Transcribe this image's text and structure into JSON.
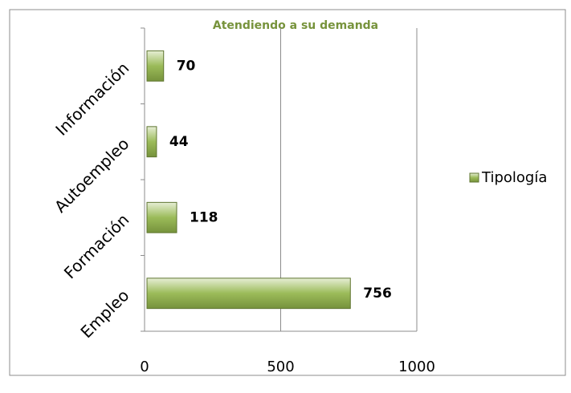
{
  "chart_data": {
    "type": "bar",
    "orientation": "horizontal",
    "title": "Atendiendo a su demanda",
    "categories": [
      "Información",
      "Autoempleo",
      "Formación",
      "Empleo"
    ],
    "series": [
      {
        "name": "Tipología",
        "color": "#9bbb59",
        "values": [
          70,
          44,
          118,
          756
        ]
      }
    ],
    "xlim": [
      0,
      1000
    ],
    "xticks": [
      0,
      500,
      1000
    ],
    "grid": true,
    "legend": "right"
  }
}
